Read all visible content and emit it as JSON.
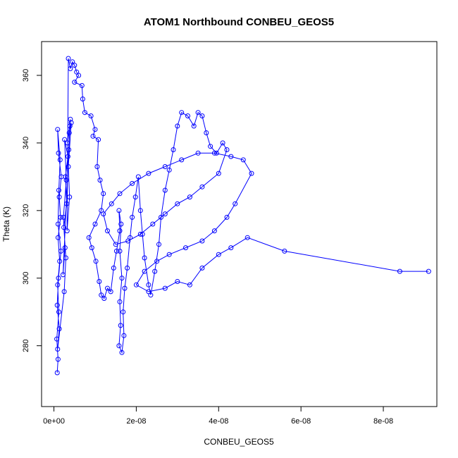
{
  "chart_data": {
    "type": "scatter",
    "title": "ATOM1 Northbound CONBEU_GEOS5",
    "xlabel": "CONBEU_GEOS5",
    "ylabel": "Theta (K)",
    "xlim": [
      -3e-09,
      9.3e-08
    ],
    "ylim": [
      262,
      370
    ],
    "x_ticks": [
      0,
      2e-08,
      4e-08,
      6e-08,
      8e-08
    ],
    "x_tick_labels": [
      "0e+00",
      "2e-08",
      "4e-08",
      "6e-08",
      "8e-08"
    ],
    "y_ticks": [
      280,
      300,
      320,
      340,
      360
    ],
    "y_tick_labels": [
      "280",
      "300",
      "320",
      "340",
      "360"
    ],
    "grid": false,
    "series": [
      {
        "color": "#0000ff",
        "marker": "open-circle",
        "line": true,
        "points": [
          [
            8e-10,
            272
          ],
          [
            1e-09,
            276
          ],
          [
            7e-10,
            282
          ],
          [
            1.2e-09,
            290
          ],
          [
            9e-10,
            298
          ],
          [
            1.4e-09,
            305
          ],
          [
            1e-09,
            312
          ],
          [
            1.6e-09,
            318
          ],
          [
            1.3e-09,
            324
          ],
          [
            1.8e-09,
            330
          ],
          [
            1.1e-09,
            337
          ],
          [
            9e-10,
            344
          ],
          [
            1.5e-09,
            335
          ],
          [
            1.2e-09,
            326
          ],
          [
            1e-09,
            316
          ],
          [
            1.7e-09,
            308
          ],
          [
            1.1e-09,
            300
          ],
          [
            8e-10,
            292
          ],
          [
            1.3e-09,
            285
          ],
          [
            9e-10,
            279
          ],
          [
            2.5e-09,
            296
          ],
          [
            2.9e-09,
            306
          ],
          [
            2.4e-09,
            315
          ],
          [
            3.1e-09,
            322
          ],
          [
            2.8e-09,
            330
          ],
          [
            3.4e-09,
            336
          ],
          [
            2.6e-09,
            341
          ],
          [
            3e-09,
            329
          ],
          [
            2.3e-09,
            318
          ],
          [
            2.7e-09,
            309
          ],
          [
            2.2e-09,
            301
          ],
          [
            3.6e-09,
            338
          ],
          [
            3.9e-09,
            345
          ],
          [
            3.3e-09,
            340
          ],
          [
            4e-09,
            347
          ],
          [
            3.7e-09,
            343
          ],
          [
            4.2e-09,
            346
          ],
          [
            3.5e-09,
            333
          ],
          [
            3.8e-09,
            324
          ],
          [
            3.2e-09,
            314
          ],
          [
            3.5e-09,
            365
          ],
          [
            4e-09,
            362
          ],
          [
            4.5e-09,
            364
          ],
          [
            5e-09,
            363
          ],
          [
            5.5e-09,
            361
          ],
          [
            6e-09,
            360
          ],
          [
            5e-09,
            358
          ],
          [
            6.8e-09,
            357
          ],
          [
            7e-09,
            353
          ],
          [
            7.5e-09,
            349
          ],
          [
            9e-09,
            348
          ],
          [
            1e-08,
            344
          ],
          [
            9.5e-09,
            342
          ],
          [
            1.08e-08,
            341
          ],
          [
            1.05e-08,
            333
          ],
          [
            1.12e-08,
            329
          ],
          [
            1.2e-08,
            325
          ],
          [
            1.15e-08,
            320
          ],
          [
            1e-08,
            316
          ],
          [
            8.5e-09,
            312
          ],
          [
            9.2e-09,
            309
          ],
          [
            1.02e-08,
            305
          ],
          [
            1.1e-08,
            299
          ],
          [
            1.15e-08,
            295
          ],
          [
            1.22e-08,
            294
          ],
          [
            1.3e-08,
            297
          ],
          [
            1.38e-08,
            296
          ],
          [
            1.45e-08,
            303
          ],
          [
            1.52e-08,
            308
          ],
          [
            1.6e-08,
            314
          ],
          [
            1.58e-08,
            320
          ],
          [
            1.63e-08,
            316
          ],
          [
            1.6e-08,
            308
          ],
          [
            1.65e-08,
            300
          ],
          [
            1.6e-08,
            293
          ],
          [
            1.62e-08,
            286
          ],
          [
            1.58e-08,
            280
          ],
          [
            1.65e-08,
            278
          ],
          [
            1.7e-08,
            283
          ],
          [
            1.68e-08,
            290
          ],
          [
            1.72e-08,
            297
          ],
          [
            1.78e-08,
            303
          ],
          [
            1.85e-08,
            312
          ],
          [
            1.9e-08,
            318
          ],
          [
            1.98e-08,
            324
          ],
          [
            2.05e-08,
            330
          ],
          [
            2.1e-08,
            320
          ],
          [
            2.15e-08,
            313
          ],
          [
            2.2e-08,
            306
          ],
          [
            2.3e-08,
            298
          ],
          [
            2.35e-08,
            295
          ],
          [
            2.45e-08,
            302
          ],
          [
            2.55e-08,
            310
          ],
          [
            2.6e-08,
            318
          ],
          [
            2.7e-08,
            326
          ],
          [
            2.8e-08,
            332
          ],
          [
            2.9e-08,
            338
          ],
          [
            3e-08,
            345
          ],
          [
            3.1e-08,
            349
          ],
          [
            3.25e-08,
            348
          ],
          [
            3.4e-08,
            345
          ],
          [
            3.5e-08,
            349
          ],
          [
            3.6e-08,
            348
          ],
          [
            3.7e-08,
            343
          ],
          [
            3.8e-08,
            339
          ],
          [
            3.95e-08,
            337
          ],
          [
            4.1e-08,
            340
          ],
          [
            4.2e-08,
            338
          ],
          [
            4e-08,
            331
          ],
          [
            3.6e-08,
            327
          ],
          [
            3.3e-08,
            324
          ],
          [
            3e-08,
            322
          ],
          [
            2.7e-08,
            319
          ],
          [
            2.4e-08,
            316
          ],
          [
            2.1e-08,
            313
          ],
          [
            1.8e-08,
            311
          ],
          [
            1.5e-08,
            310
          ],
          [
            1.3e-08,
            314
          ],
          [
            1.2e-08,
            319
          ],
          [
            1.4e-08,
            322
          ],
          [
            1.6e-08,
            325
          ],
          [
            1.9e-08,
            328
          ],
          [
            2.3e-08,
            331
          ],
          [
            2.7e-08,
            333
          ],
          [
            3.1e-08,
            335
          ],
          [
            3.5e-08,
            337
          ],
          [
            3.9e-08,
            337
          ],
          [
            4.3e-08,
            336
          ],
          [
            4.6e-08,
            335
          ],
          [
            4.8e-08,
            331
          ],
          [
            4.4e-08,
            322
          ],
          [
            4.2e-08,
            318
          ],
          [
            3.9e-08,
            314
          ],
          [
            3.6e-08,
            311
          ],
          [
            3.2e-08,
            309
          ],
          [
            2.8e-08,
            307
          ],
          [
            2.5e-08,
            305
          ],
          [
            2.2e-08,
            302
          ],
          [
            2e-08,
            298
          ],
          [
            2.3e-08,
            296
          ],
          [
            2.7e-08,
            297
          ],
          [
            3e-08,
            299
          ],
          [
            3.3e-08,
            298
          ],
          [
            3.6e-08,
            303
          ],
          [
            4e-08,
            307
          ],
          [
            4.3e-08,
            309
          ],
          [
            4.7e-08,
            312
          ],
          [
            5.6e-08,
            308
          ],
          [
            8.4e-08,
            302
          ],
          [
            9.1e-08,
            302
          ]
        ]
      }
    ]
  }
}
